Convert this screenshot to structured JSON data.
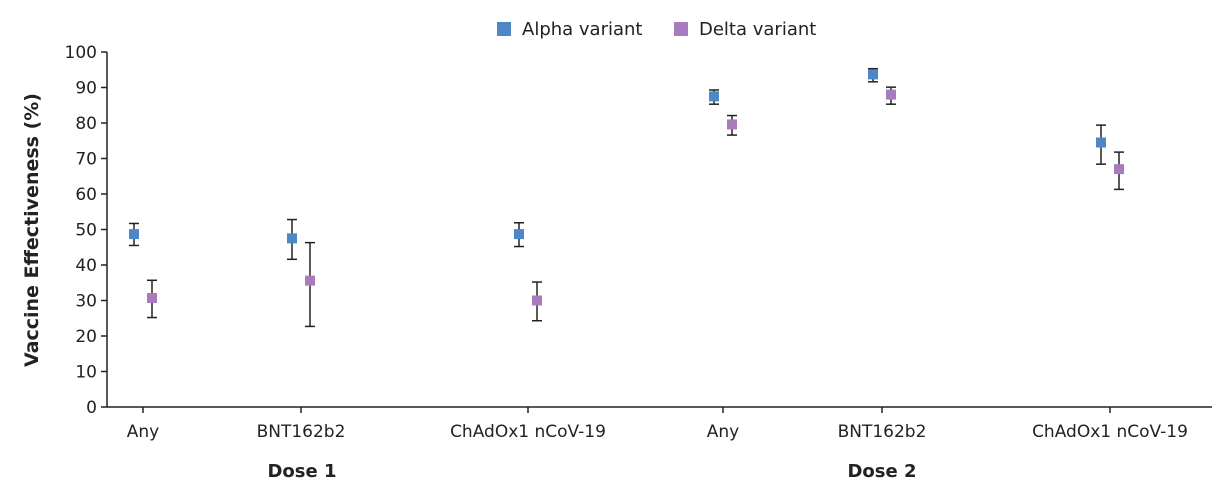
{
  "chart_data": {
    "type": "scatter",
    "ylabel": "Vaccine Effectiveness (%)",
    "ylim": [
      0,
      100
    ],
    "yticks": [
      0,
      10,
      20,
      30,
      40,
      50,
      60,
      70,
      80,
      90,
      100
    ],
    "legend_position": "top-center",
    "categories": [
      "Any",
      "BNT162b2",
      "ChAdOx1 nCoV-19",
      "Any",
      "BNT162b2",
      "ChAdOx1 nCoV-19"
    ],
    "groups": [
      {
        "label": "Dose 1",
        "categories": [
          0,
          1,
          2
        ]
      },
      {
        "label": "Dose 2",
        "categories": [
          3,
          4,
          5
        ]
      }
    ],
    "series": [
      {
        "name": "Alpha variant",
        "color": "#4f86c6",
        "values": [
          48.7,
          47.5,
          48.7,
          87.5,
          93.7,
          74.5
        ],
        "lower": [
          45.5,
          41.6,
          45.2,
          85.3,
          91.6,
          68.4
        ],
        "upper": [
          51.7,
          52.8,
          51.9,
          89.3,
          95.3,
          79.4
        ]
      },
      {
        "name": "Delta variant",
        "color": "#a77bbd",
        "values": [
          30.7,
          35.6,
          30.0,
          79.6,
          88.0,
          67.0
        ],
        "lower": [
          25.2,
          22.7,
          24.3,
          76.6,
          85.3,
          61.3
        ],
        "upper": [
          35.7,
          46.3,
          35.2,
          82.1,
          90.1,
          71.8
        ]
      }
    ]
  }
}
